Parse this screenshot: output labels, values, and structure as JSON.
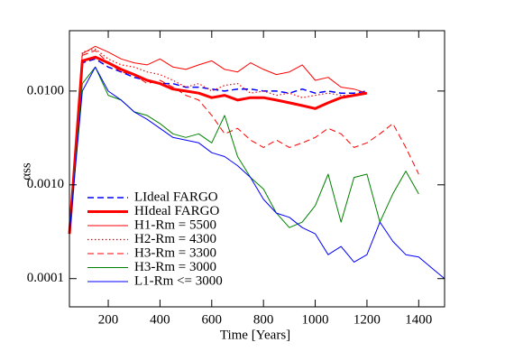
{
  "chart_data": {
    "type": "line",
    "x_label": "Time [Years]",
    "y_label": "αss",
    "x": [
      50,
      100,
      150,
      200,
      250,
      300,
      350,
      400,
      450,
      500,
      550,
      600,
      650,
      700,
      750,
      800,
      850,
      900,
      950,
      1000,
      1050,
      1100,
      1150,
      1200,
      1250,
      1300,
      1350,
      1400,
      1450,
      1500
    ],
    "xlim": [
      50,
      1500
    ],
    "xticks": [
      200,
      400,
      600,
      800,
      1000,
      1200,
      1400
    ],
    "ylim": [
      5e-05,
      0.044
    ],
    "log_y": true,
    "yticks": [
      {
        "value": 0.0001,
        "label": "0.0001"
      },
      {
        "value": 0.001,
        "label": "0.0010"
      },
      {
        "value": 0.01,
        "label": "0.0100"
      }
    ],
    "legend": "lower left",
    "series": [
      {
        "name": "LIdeal FARGO",
        "color": "#0000ff",
        "dash": "dashed",
        "width": 1.5,
        "values": [
          0.0003,
          0.02,
          0.022,
          0.018,
          0.016,
          0.014,
          0.013,
          0.012,
          0.012,
          0.011,
          0.011,
          0.0105,
          0.01,
          0.0105,
          0.0105,
          0.01,
          0.01,
          0.0095,
          0.0105,
          0.0095,
          0.01,
          0.0095,
          0.0095,
          0.01,
          null,
          null,
          null,
          null,
          null,
          null
        ]
      },
      {
        "name": "HIdeal FARGO",
        "color": "#ff0000",
        "dash": "solid",
        "width": 3,
        "values": [
          0.0003,
          0.021,
          0.023,
          0.02,
          0.017,
          0.015,
          0.013,
          0.012,
          0.0105,
          0.01,
          0.0095,
          0.0085,
          0.009,
          0.008,
          0.0085,
          0.0085,
          0.008,
          0.0075,
          0.007,
          0.0065,
          0.0075,
          0.0085,
          0.009,
          0.0095,
          null,
          null,
          null,
          null,
          null,
          null
        ]
      },
      {
        "name": "H1-Rm = 5500",
        "color": "#ff0000",
        "dash": "solid",
        "width": 1,
        "values": [
          0.0003,
          0.025,
          0.03,
          0.026,
          0.022,
          0.02,
          0.019,
          0.022,
          0.018,
          0.017,
          0.019,
          0.021,
          0.017,
          0.016,
          0.02,
          0.017,
          0.015,
          0.016,
          0.019,
          0.013,
          0.014,
          0.011,
          0.0105,
          0.0095,
          null,
          null,
          null,
          null,
          null,
          null
        ]
      },
      {
        "name": "H2-Rm = 4300",
        "color": "#ff0000",
        "dash": "dotted",
        "width": 1.2,
        "values": [
          0.0003,
          0.026,
          0.028,
          0.022,
          0.019,
          0.018,
          0.016,
          0.015,
          0.013,
          0.011,
          0.012,
          0.01,
          0.0115,
          0.012,
          0.0095,
          0.01,
          0.009,
          0.0095,
          0.0085,
          0.009,
          0.0095,
          0.009,
          0.009,
          0.0095,
          null,
          null,
          null,
          null,
          null,
          null
        ]
      },
      {
        "name": "H3-Rm = 3300",
        "color": "#ff0000",
        "dash": "dashed",
        "width": 1,
        "values": [
          0.0003,
          0.024,
          0.027,
          0.02,
          0.016,
          0.015,
          0.012,
          0.013,
          0.011,
          0.009,
          0.008,
          0.0055,
          0.0035,
          0.004,
          0.003,
          0.0025,
          0.003,
          0.0025,
          0.0028,
          0.0032,
          0.004,
          0.0035,
          0.0025,
          0.0028,
          0.0035,
          0.0045,
          0.0025,
          0.0013,
          null,
          null
        ]
      },
      {
        "name": "H3-Rm = 3000",
        "color": "#008000",
        "dash": "solid",
        "width": 1,
        "values": [
          0.0003,
          0.012,
          0.018,
          0.009,
          0.008,
          0.006,
          0.0055,
          0.0045,
          0.0035,
          0.0032,
          0.0035,
          0.0028,
          0.0055,
          0.002,
          0.0012,
          0.0009,
          0.0005,
          0.00035,
          0.0004,
          0.0006,
          0.0013,
          0.0004,
          0.0012,
          0.0013,
          0.0004,
          0.0008,
          0.0014,
          0.0008,
          null,
          null
        ]
      },
      {
        "name": "L1-Rm <= 3000",
        "color": "#0000ff",
        "dash": "solid",
        "width": 1,
        "values": [
          0.0003,
          0.01,
          0.018,
          0.01,
          0.008,
          0.006,
          0.005,
          0.004,
          0.0032,
          0.003,
          0.0028,
          0.0022,
          0.002,
          0.0016,
          0.0012,
          0.0007,
          0.0005,
          0.00045,
          0.00035,
          0.0003,
          0.00018,
          0.00022,
          0.00015,
          0.00018,
          0.0004,
          0.00025,
          0.00018,
          0.00017,
          0.00013,
          0.0001
        ]
      }
    ]
  }
}
